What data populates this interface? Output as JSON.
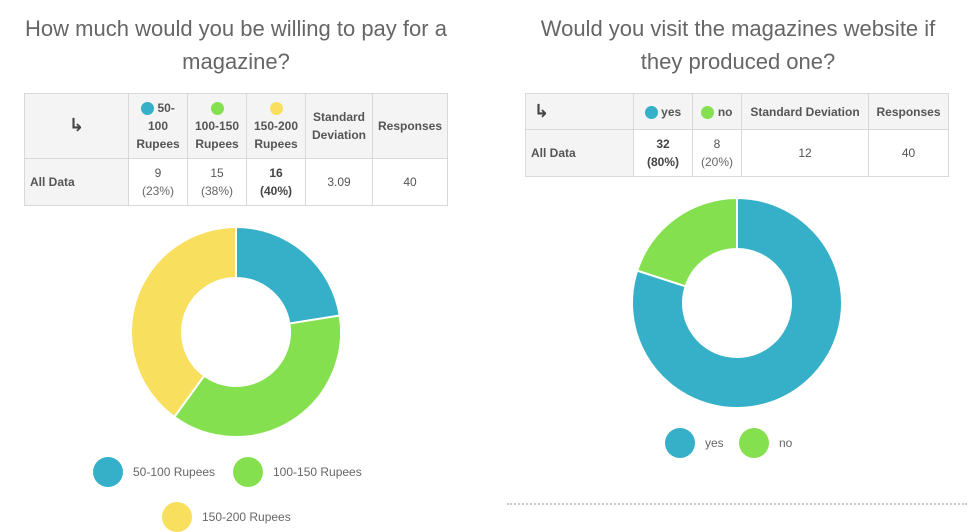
{
  "colors": {
    "teal": "#35b0c8",
    "green": "#85e04f",
    "yellow": "#f8df5e"
  },
  "icons": {
    "swap": "swap-arrows-icon"
  },
  "left": {
    "title": "How much would you be willing to pay for a magazine?",
    "table": {
      "headers": [
        {
          "label": "50-100 Rupees",
          "color": "#35b0c8"
        },
        {
          "label": "100-150 Rupees",
          "color": "#85e04f"
        },
        {
          "label": "150-200 Rupees",
          "color": "#f8df5e"
        }
      ],
      "std_header": "Standard Deviation",
      "responses_header": "Responses",
      "row_label": "All Data",
      "cells": [
        {
          "count": "9",
          "pct": "(23%)"
        },
        {
          "count": "15",
          "pct": "(38%)"
        },
        {
          "count": "16",
          "pct": "(40%)"
        }
      ],
      "std": "3.09",
      "responses": "40"
    },
    "legend": [
      "50-100 Rupees",
      "100-150 Rupees",
      "150-200 Rupees"
    ]
  },
  "right": {
    "title": "Would you visit the magazines website if they produced one?",
    "table": {
      "headers": [
        {
          "label": "yes",
          "color": "#35b0c8"
        },
        {
          "label": "no",
          "color": "#85e04f"
        }
      ],
      "std_header": "Standard Deviation",
      "responses_header": "Responses",
      "row_label": "All Data",
      "cells": [
        {
          "count": "32",
          "pct": "(80%)"
        },
        {
          "count": "8",
          "pct": "(20%)"
        }
      ],
      "std": "12",
      "responses": "40"
    },
    "legend": [
      "yes",
      "no"
    ]
  },
  "chart_data": [
    {
      "type": "pie",
      "title": "How much would you be willing to pay for a magazine?",
      "categories": [
        "50-100 Rupees",
        "100-150 Rupees",
        "150-200 Rupees"
      ],
      "values": [
        9,
        15,
        16
      ],
      "colors": [
        "#35b0c8",
        "#85e04f",
        "#f8df5e"
      ],
      "legend": "bottom"
    },
    {
      "type": "pie",
      "title": "Would you visit the magazines website if they produced one?",
      "categories": [
        "yes",
        "no"
      ],
      "values": [
        32,
        8
      ],
      "colors": [
        "#35b0c8",
        "#85e04f"
      ],
      "legend": "bottom"
    }
  ]
}
